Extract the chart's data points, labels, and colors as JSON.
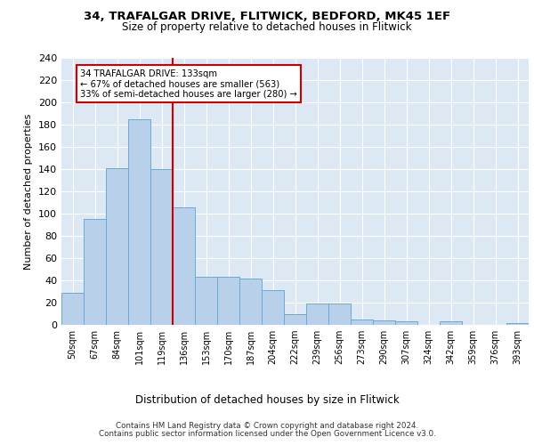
{
  "title_line1": "34, TRAFALGAR DRIVE, FLITWICK, BEDFORD, MK45 1EF",
  "title_line2": "Size of property relative to detached houses in Flitwick",
  "xlabel": "Distribution of detached houses by size in Flitwick",
  "ylabel": "Number of detached properties",
  "bar_labels": [
    "50sqm",
    "67sqm",
    "84sqm",
    "101sqm",
    "119sqm",
    "136sqm",
    "153sqm",
    "170sqm",
    "187sqm",
    "204sqm",
    "222sqm",
    "239sqm",
    "256sqm",
    "273sqm",
    "290sqm",
    "307sqm",
    "324sqm",
    "342sqm",
    "359sqm",
    "376sqm",
    "393sqm"
  ],
  "bar_values": [
    29,
    95,
    141,
    185,
    140,
    106,
    43,
    43,
    42,
    31,
    10,
    19,
    19,
    5,
    4,
    3,
    0,
    3,
    0,
    0,
    2
  ],
  "bar_color": "#b8d0ea",
  "bar_edge_color": "#6aaad4",
  "vline_color": "#cc0000",
  "annotation_text": "34 TRAFALGAR DRIVE: 133sqm\n← 67% of detached houses are smaller (563)\n33% of semi-detached houses are larger (280) →",
  "annotation_box_color": "white",
  "annotation_box_edge": "#cc0000",
  "ylim": [
    0,
    240
  ],
  "yticks": [
    0,
    20,
    40,
    60,
    80,
    100,
    120,
    140,
    160,
    180,
    200,
    220,
    240
  ],
  "bg_color": "#dde8f5",
  "footer_line1": "Contains HM Land Registry data © Crown copyright and database right 2024.",
  "footer_line2": "Contains public sector information licensed under the Open Government Licence v3.0."
}
